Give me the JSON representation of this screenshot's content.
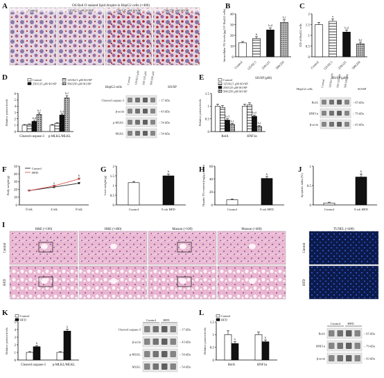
{
  "panels": [
    {
      "id": "A",
      "letter": "A",
      "label": "panel-a-oil-red-o",
      "title": "Oil Red O stained lipid droplet in HepG2 cells (×400)",
      "images": [
        "Control",
        "125/62.5 μM SO/SP",
        "250/125 μM SO/SP",
        "500/250 μM SO/SP"
      ]
    },
    {
      "id": "B",
      "letter": "B"
    },
    {
      "id": "C",
      "letter": "C"
    },
    {
      "id": "D",
      "letter": "D"
    },
    {
      "id": "E",
      "letter": "E"
    },
    {
      "id": "F",
      "letter": "F"
    },
    {
      "id": "G",
      "letter": "G"
    },
    {
      "id": "H",
      "letter": "H"
    },
    {
      "id": "J",
      "letter": "J"
    },
    {
      "id": "I",
      "letter": "I"
    },
    {
      "id": "K",
      "letter": "K"
    },
    {
      "id": "L",
      "letter": "L"
    }
  ],
  "histology": {
    "headers": [
      "H&E (×100)",
      "H&E (×400)",
      "Masson (×100)",
      "Masson (×400)",
      "TUNEL (×400)"
    ],
    "rows": [
      "Control",
      "HFD"
    ]
  },
  "blots": {
    "D": {
      "title_left": "HepG2 cells",
      "title_right": "SO/SP",
      "lanes": [
        "Control",
        "125/62.5 μM",
        "250/125 μM",
        "500/250 μM"
      ],
      "bands": [
        {
          "name": "Cleaved caspase-3",
          "kda": "17 kDa"
        },
        {
          "name": "β-actin",
          "kda": "43 kDa"
        },
        {
          "name": "p-MLKL",
          "kda": "54 kDa"
        },
        {
          "name": "MLKL",
          "kda": "54 kDa"
        }
      ]
    },
    "E": {
      "title_left": "HepG2 cells",
      "title_right": "SO/SP",
      "lanes": [
        "Control",
        "125/62.5 μM",
        "250/125 μM",
        "500/250 μM"
      ],
      "bands": [
        {
          "name": "RelA",
          "kda": "65 kDa"
        },
        {
          "name": "HNF1α",
          "kda": "79 kDa"
        },
        {
          "name": "β-actin",
          "kda": "43 kDa"
        }
      ]
    },
    "K": {
      "groups": [
        "Control",
        "HFD"
      ],
      "bands": [
        {
          "name": "Cleaved caspase-3",
          "kda": "17 kDa"
        },
        {
          "name": "β-actin",
          "kda": "43 kDa"
        },
        {
          "name": "p-MLKL",
          "kda": "54 kDa"
        },
        {
          "name": "MLKL",
          "kda": "54 kDa"
        }
      ]
    },
    "L": {
      "groups": [
        "Control",
        "HFD"
      ],
      "bands": [
        {
          "name": "RelA",
          "kda": "65 kDa"
        },
        {
          "name": "HNF1α",
          "kda": "79 kDa"
        },
        {
          "name": "β-actin",
          "kda": "43 kDa"
        }
      ]
    }
  },
  "colors": {
    "bar_fill_dark": "#111111",
    "bar_fill_white": "#ffffff",
    "line_red": "#d9534f",
    "line_black": "#222222",
    "tunel_bg": "#0b1a4a",
    "he_pink": "#e9b7cf"
  },
  "chart_data": [
    {
      "id": "B",
      "type": "bar",
      "ylabel": "Intracellular TG levels (μg/10⁶ HepG2 cells)",
      "xlabel": "SO/SP (μM)",
      "categories": [
        "Control",
        "125/62.5",
        "250/125",
        "500/250"
      ],
      "values": [
        13,
        17,
        25,
        32
      ],
      "errors": [
        1.2,
        1.8,
        2,
        2.5
      ],
      "fills": [
        "white",
        "hatch",
        "dark",
        "dots"
      ],
      "sig": [
        "",
        "b",
        "b,d",
        "b,f"
      ],
      "ylim": [
        0,
        40
      ],
      "yticks": [
        0,
        10,
        20,
        30,
        40
      ]
    },
    {
      "id": "C",
      "type": "bar",
      "ylabel": "OD of HepG2 cells",
      "xlabel": "SO/SP (μM)",
      "categories": [
        "Control",
        "125/62.5",
        "250/125",
        "500/250"
      ],
      "values": [
        1.5,
        1.65,
        1.15,
        0.6
      ],
      "errors": [
        0.1,
        0.12,
        0.1,
        0.08
      ],
      "fills": [
        "white",
        "hatch",
        "dark",
        "dots"
      ],
      "sig": [
        "",
        "a",
        "b,d",
        "b,f"
      ],
      "ylim": [
        0,
        2.0
      ],
      "yticks": [
        0.0,
        0.5,
        1.0,
        1.5,
        2.0
      ]
    },
    {
      "id": "D",
      "type": "bar",
      "ylabel": "Relative protein levels",
      "legend": [
        "Control",
        "125/62.5 μM SO/SP",
        "250/125 μM SO/SP",
        "500/250 μM SO/SP"
      ],
      "categories": [
        "Cleaved caspase-3",
        "p-MLKL/MLKL"
      ],
      "series": [
        {
          "name": "Control",
          "values": [
            1,
            1
          ],
          "errors": [
            0.1,
            0.1
          ]
        },
        {
          "name": "125/62.5 μM SO/SP",
          "values": [
            1.1,
            1.3
          ],
          "errors": [
            0.1,
            0.1
          ]
        },
        {
          "name": "250/125 μM SO/SP",
          "values": [
            1.6,
            2.6
          ],
          "errors": [
            0.15,
            0.2
          ]
        },
        {
          "name": "500/250 μM SO/SP",
          "values": [
            2.7,
            5.3
          ],
          "errors": [
            0.25,
            0.35
          ]
        }
      ],
      "sig": [
        [
          "",
          "",
          "b,d",
          "b,f"
        ],
        [
          "",
          "",
          "b,d",
          "b,f"
        ]
      ],
      "ylim": [
        0,
        6
      ],
      "yticks": [
        0,
        1,
        2,
        3,
        4,
        5,
        6
      ]
    },
    {
      "id": "E",
      "type": "bar",
      "ylabel": "Relative protein levels",
      "legend": [
        "Control",
        "125/62.5 μM SO/SP",
        "250/125 μM SO/SP",
        "500/250 μM SO/SP"
      ],
      "categories": [
        "RelA",
        "HNF1α"
      ],
      "series": [
        {
          "name": "Control",
          "values": [
            1,
            1
          ],
          "errors": [
            0.08,
            0.08
          ]
        },
        {
          "name": "125/62.5 μM SO/SP",
          "values": [
            0.95,
            1.05
          ],
          "errors": [
            0.08,
            0.08
          ]
        },
        {
          "name": "250/125 μM SO/SP",
          "values": [
            0.45,
            0.6
          ],
          "errors": [
            0.05,
            0.05
          ]
        },
        {
          "name": "500/250 μM SO/SP",
          "values": [
            0.28,
            0.2
          ],
          "errors": [
            0.04,
            0.04
          ]
        }
      ],
      "sig": [
        [
          "",
          "",
          "b,d",
          "b,f"
        ],
        [
          "",
          "",
          "b,d",
          "b,f"
        ]
      ],
      "ylim": [
        0,
        1.5
      ],
      "yticks": [
        0.0,
        0.5,
        1.0,
        1.5
      ]
    },
    {
      "id": "F",
      "type": "line",
      "ylabel": "Body weight (g)",
      "categories": [
        "0 wk",
        "4 wk",
        "8 wk"
      ],
      "series": [
        {
          "name": "Control",
          "values": [
            18.5,
            23,
            28
          ],
          "errors": [
            0.8,
            1,
            1
          ]
        },
        {
          "name": "HFD",
          "values": [
            18.5,
            24.5,
            33.5
          ],
          "errors": [
            0.8,
            1,
            1.2
          ]
        }
      ],
      "sig": [
        "",
        "a",
        "b"
      ],
      "ylim": [
        0,
        50
      ],
      "yticks": [
        0,
        10,
        20,
        30,
        40,
        50
      ]
    },
    {
      "id": "G",
      "type": "bar",
      "ylabel": "Liver weight (g)",
      "categories": [
        "Control",
        "8 wk HFD"
      ],
      "values": [
        1.15,
        1.5
      ],
      "errors": [
        0.06,
        0.1
      ],
      "fills": [
        "white",
        "dark"
      ],
      "sig": [
        "",
        "b"
      ],
      "ylim": [
        0,
        2.0
      ],
      "yticks": [
        0.0,
        0.5,
        1.0,
        1.5,
        2.0
      ]
    },
    {
      "id": "H",
      "type": "bar",
      "ylabel": "Hepatic TG content (mg/g protein)",
      "categories": [
        "Control",
        "8 wk HFD"
      ],
      "values": [
        8,
        41
      ],
      "errors": [
        1.2,
        3
      ],
      "fills": [
        "white",
        "dark"
      ],
      "sig": [
        "",
        "b"
      ],
      "ylim": [
        0,
        60
      ],
      "yticks": [
        0,
        20,
        40,
        60
      ]
    },
    {
      "id": "J",
      "type": "bar",
      "ylabel": "Apoptotic index (%)",
      "categories": [
        "Control",
        "8 wk HFD"
      ],
      "values": [
        0.05,
        0.72
      ],
      "errors": [
        0.02,
        0.08
      ],
      "fills": [
        "white",
        "dark"
      ],
      "sig": [
        "",
        "b"
      ],
      "ylim": [
        0,
        1.0
      ],
      "yticks": [
        0.0,
        0.5,
        1.0
      ]
    },
    {
      "id": "K",
      "type": "bar",
      "ylabel": "Relative protein levels",
      "legend": [
        "Control",
        "HFD"
      ],
      "categories": [
        "Cleaved caspase-3",
        "p-MLKL/MLKL"
      ],
      "series": [
        {
          "name": "Control",
          "values": [
            1,
            1
          ],
          "errors": [
            0.1,
            0.1
          ]
        },
        {
          "name": "HFD",
          "values": [
            1.75,
            3.8
          ],
          "errors": [
            0.15,
            0.25
          ]
        }
      ],
      "sig": [
        [
          "",
          "b"
        ],
        [
          "",
          "b"
        ]
      ],
      "ylim": [
        0,
        5
      ],
      "yticks": [
        0,
        1,
        2,
        3,
        4,
        5
      ]
    },
    {
      "id": "L",
      "type": "bar",
      "ylabel": "Relative protein levels",
      "legend": [
        "Control",
        "HFD"
      ],
      "categories": [
        "RelA",
        "HNF1α"
      ],
      "series": [
        {
          "name": "Control",
          "values": [
            1,
            1
          ],
          "errors": [
            0.15,
            0.1
          ]
        },
        {
          "name": "HFD",
          "values": [
            0.65,
            0.72
          ],
          "errors": [
            0.07,
            0.07
          ]
        }
      ],
      "sig": [
        [
          "",
          "b"
        ],
        [
          "",
          "b"
        ]
      ],
      "ylim": [
        0,
        1.5
      ],
      "yticks": [
        0.0,
        0.5,
        1.0,
        1.5
      ]
    }
  ]
}
